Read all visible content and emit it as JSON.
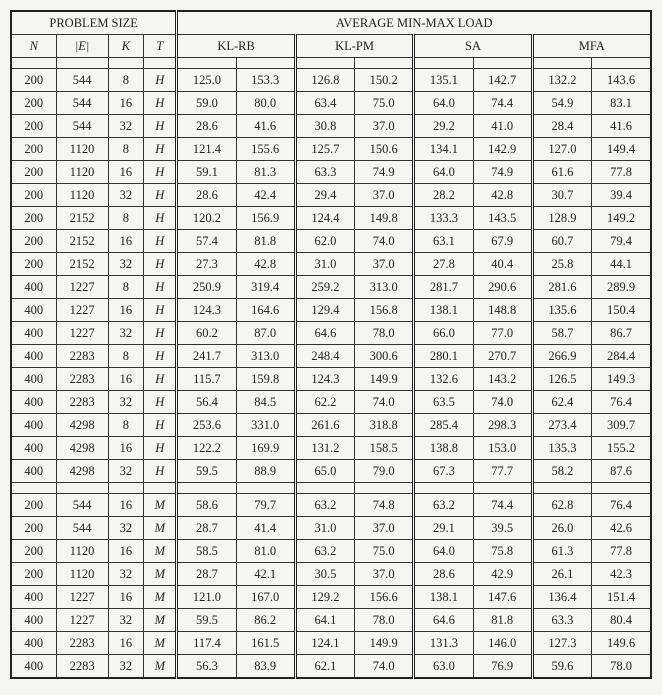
{
  "headers": {
    "problem_size_title": "PROBLEM SIZE",
    "avg_title": "AVERAGE MIN-MAX LOAD",
    "N": "N",
    "E": "|E|",
    "K": "K",
    "T": "T",
    "algos": [
      "KL-RB",
      "KL-PM",
      "SA",
      "MFA"
    ]
  },
  "rows": [
    {
      "N": "200",
      "E": "544",
      "K": "8",
      "T": "H",
      "v": [
        "125.0",
        "153.3",
        "126.8",
        "150.2",
        "135.1",
        "142.7",
        "132.2",
        "143.6"
      ]
    },
    {
      "N": "200",
      "E": "544",
      "K": "16",
      "T": "H",
      "v": [
        "59.0",
        "80.0",
        "63.4",
        "75.0",
        "64.0",
        "74.4",
        "54.9",
        "83.1"
      ]
    },
    {
      "N": "200",
      "E": "544",
      "K": "32",
      "T": "H",
      "v": [
        "28.6",
        "41.6",
        "30.8",
        "37.0",
        "29.2",
        "41.0",
        "28.4",
        "41.6"
      ]
    },
    {
      "N": "200",
      "E": "1120",
      "K": "8",
      "T": "H",
      "v": [
        "121.4",
        "155.6",
        "125.7",
        "150.6",
        "134.1",
        "142.9",
        "127.0",
        "149.4"
      ]
    },
    {
      "N": "200",
      "E": "1120",
      "K": "16",
      "T": "H",
      "v": [
        "59.1",
        "81.3",
        "63.3",
        "74.9",
        "64.0",
        "74.9",
        "61.6",
        "77.8"
      ]
    },
    {
      "N": "200",
      "E": "1120",
      "K": "32",
      "T": "H",
      "v": [
        "28.6",
        "42.4",
        "29.4",
        "37.0",
        "28.2",
        "42.8",
        "30.7",
        "39.4"
      ]
    },
    {
      "N": "200",
      "E": "2152",
      "K": "8",
      "T": "H",
      "v": [
        "120.2",
        "156.9",
        "124.4",
        "149.8",
        "133.3",
        "143.5",
        "128.9",
        "149.2"
      ]
    },
    {
      "N": "200",
      "E": "2152",
      "K": "16",
      "T": "H",
      "v": [
        "57.4",
        "81.8",
        "62.0",
        "74.0",
        "63.1",
        "67.9",
        "60.7",
        "79.4"
      ]
    },
    {
      "N": "200",
      "E": "2152",
      "K": "32",
      "T": "H",
      "v": [
        "27.3",
        "42.8",
        "31.0",
        "37.0",
        "27.8",
        "40.4",
        "25.8",
        "44.1"
      ]
    },
    {
      "N": "400",
      "E": "1227",
      "K": "8",
      "T": "H",
      "v": [
        "250.9",
        "319.4",
        "259.2",
        "313.0",
        "281.7",
        "290.6",
        "281.6",
        "289.9"
      ]
    },
    {
      "N": "400",
      "E": "1227",
      "K": "16",
      "T": "H",
      "v": [
        "124.3",
        "164.6",
        "129.4",
        "156.8",
        "138.1",
        "148.8",
        "135.6",
        "150.4"
      ]
    },
    {
      "N": "400",
      "E": "1227",
      "K": "32",
      "T": "H",
      "v": [
        "60.2",
        "87.0",
        "64.6",
        "78.0",
        "66.0",
        "77.0",
        "58.7",
        "86.7"
      ]
    },
    {
      "N": "400",
      "E": "2283",
      "K": "8",
      "T": "H",
      "v": [
        "241.7",
        "313.0",
        "248.4",
        "300.6",
        "280.1",
        "270.7",
        "266.9",
        "284.4"
      ]
    },
    {
      "N": "400",
      "E": "2283",
      "K": "16",
      "T": "H",
      "v": [
        "115.7",
        "159.8",
        "124.3",
        "149.9",
        "132.6",
        "143.2",
        "126.5",
        "149.3"
      ]
    },
    {
      "N": "400",
      "E": "2283",
      "K": "32",
      "T": "H",
      "v": [
        "56.4",
        "84.5",
        "62.2",
        "74.0",
        "63.5",
        "74.0",
        "62.4",
        "76.4"
      ]
    },
    {
      "N": "400",
      "E": "4298",
      "K": "8",
      "T": "H",
      "v": [
        "253.6",
        "331.0",
        "261.6",
        "318.8",
        "285.4",
        "298.3",
        "273.4",
        "309.7"
      ]
    },
    {
      "N": "400",
      "E": "4298",
      "K": "16",
      "T": "H",
      "v": [
        "122.2",
        "169.9",
        "131.2",
        "158.5",
        "138.8",
        "153.0",
        "135.3",
        "155.2"
      ]
    },
    {
      "N": "400",
      "E": "4298",
      "K": "32",
      "T": "H",
      "v": [
        "59.5",
        "88.9",
        "65.0",
        "79.0",
        "67.3",
        "77.7",
        "58.2",
        "87.6"
      ]
    }
  ],
  "rows2": [
    {
      "N": "200",
      "E": "544",
      "K": "16",
      "T": "M",
      "v": [
        "58.6",
        "79.7",
        "63.2",
        "74.8",
        "63.2",
        "74.4",
        "62.8",
        "76.4"
      ]
    },
    {
      "N": "200",
      "E": "544",
      "K": "32",
      "T": "M",
      "v": [
        "28.7",
        "41.4",
        "31.0",
        "37.0",
        "29.1",
        "39.5",
        "26.0",
        "42.6"
      ]
    },
    {
      "N": "200",
      "E": "1120",
      "K": "16",
      "T": "M",
      "v": [
        "58.5",
        "81.0",
        "63.2",
        "75.0",
        "64.0",
        "75.8",
        "61.3",
        "77.8"
      ]
    },
    {
      "N": "200",
      "E": "1120",
      "K": "32",
      "T": "M",
      "v": [
        "28.7",
        "42.1",
        "30.5",
        "37.0",
        "28.6",
        "42.9",
        "26.1",
        "42.3"
      ]
    },
    {
      "N": "400",
      "E": "1227",
      "K": "16",
      "T": "M",
      "v": [
        "121.0",
        "167.0",
        "129.2",
        "156.6",
        "138.1",
        "147.6",
        "136.4",
        "151.4"
      ]
    },
    {
      "N": "400",
      "E": "1227",
      "K": "32",
      "T": "M",
      "v": [
        "59.5",
        "86.2",
        "64.1",
        "78.0",
        "64.6",
        "81.8",
        "63.3",
        "80.4"
      ]
    },
    {
      "N": "400",
      "E": "2283",
      "K": "16",
      "T": "M",
      "v": [
        "117.4",
        "161.5",
        "124.1",
        "149.9",
        "131.3",
        "146.0",
        "127.3",
        "149.6"
      ]
    },
    {
      "N": "400",
      "E": "2283",
      "K": "32",
      "T": "M",
      "v": [
        "56.3",
        "83.9",
        "62.1",
        "74.0",
        "63.0",
        "76.9",
        "59.6",
        "78.0"
      ]
    }
  ]
}
